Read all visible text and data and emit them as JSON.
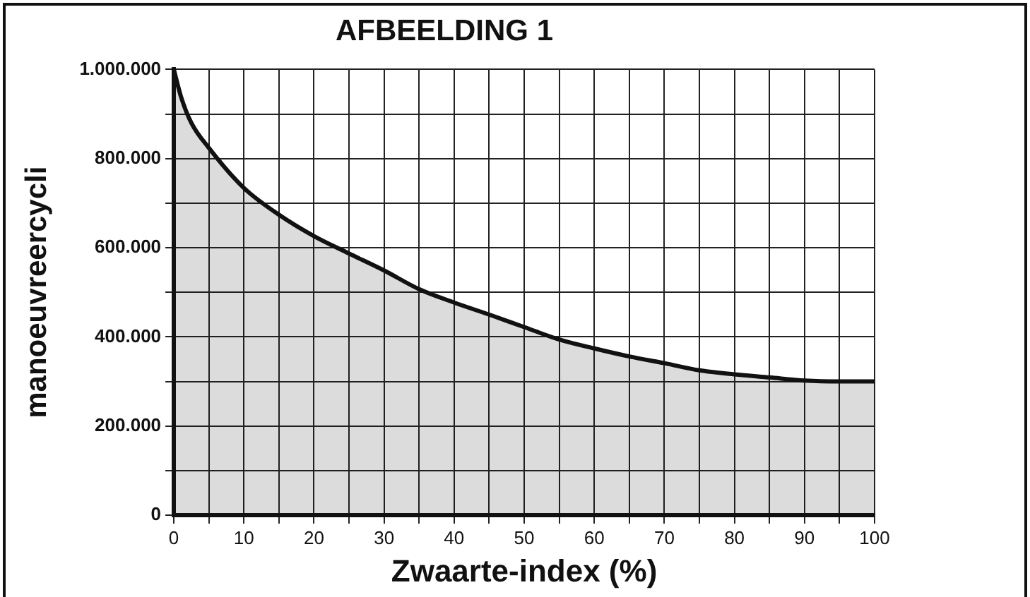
{
  "chart_data": {
    "type": "area",
    "title": "AFBEELDING 1",
    "xlabel": "Zwaarte-index (%)",
    "ylabel": "manoeuvreercycli",
    "x": [
      0,
      1,
      2.5,
      5,
      10,
      15,
      20,
      25,
      30,
      35,
      40,
      45,
      50,
      55,
      60,
      65,
      70,
      75,
      80,
      85,
      90,
      95,
      100
    ],
    "series": [
      {
        "color": "#111111",
        "values": [
          1000000,
          940000,
          880000,
          824000,
          734000,
          674000,
          626000,
          587000,
          549000,
          507000,
          477000,
          450000,
          422000,
          394000,
          374000,
          356000,
          341000,
          325000,
          316000,
          309000,
          302000,
          300000,
          300000
        ]
      }
    ],
    "xlim": [
      0,
      100
    ],
    "ylim": [
      0,
      1000000
    ],
    "xticks": [
      0,
      {
        "value": 5,
        "label": null
      },
      10,
      {
        "value": 15,
        "label": null
      },
      20,
      {
        "value": 25,
        "label": null
      },
      30,
      {
        "value": 35,
        "label": null
      },
      40,
      {
        "value": 45,
        "label": null
      },
      50,
      {
        "value": 55,
        "label": null
      },
      60,
      {
        "value": 65,
        "label": null
      },
      70,
      {
        "value": 75,
        "label": null
      },
      80,
      {
        "value": 85,
        "label": null
      },
      90,
      {
        "value": 95,
        "label": null
      },
      100
    ],
    "yticks": [
      0,
      {
        "value": 100000,
        "label": null
      },
      {
        "value": 200000,
        "label": "200.000"
      },
      {
        "value": 300000,
        "label": null
      },
      {
        "value": 400000,
        "label": "400.000"
      },
      {
        "value": 500000,
        "label": null
      },
      {
        "value": 600000,
        "label": "600.000"
      },
      {
        "value": 700000,
        "label": null
      },
      {
        "value": 800000,
        "label": "800.000"
      },
      {
        "value": 900000,
        "label": null
      },
      {
        "value": 1000000,
        "label": "1.000.000"
      }
    ],
    "grid": true,
    "marker": "none",
    "line_style": "solid"
  }
}
